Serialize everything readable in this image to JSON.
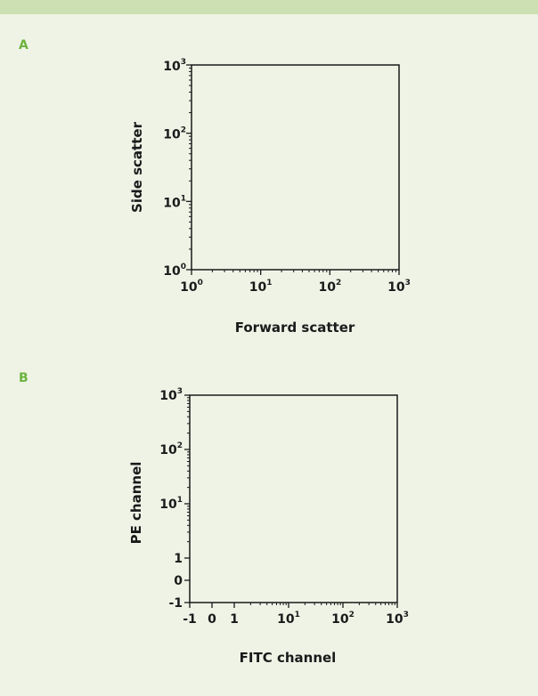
{
  "panels": [
    {
      "label": "A"
    },
    {
      "label": "B"
    }
  ],
  "colors": {
    "background": "#eef3e6",
    "bar": "#cde0b3",
    "panel_label": "#6cb33f",
    "ink": "#1a1a1a"
  },
  "chart_data": [
    {
      "type": "scatter",
      "title": "",
      "xlabel": "Forward scatter",
      "ylabel": "Side scatter",
      "xscale": "log",
      "yscale": "log",
      "xlim": [
        1,
        1000
      ],
      "ylim": [
        1,
        1000
      ],
      "x_ticks": [
        {
          "value": 1,
          "base": "10",
          "exp": "0"
        },
        {
          "value": 10,
          "base": "10",
          "exp": "1"
        },
        {
          "value": 100,
          "base": "10",
          "exp": "2"
        },
        {
          "value": 1000,
          "base": "10",
          "exp": "3"
        }
      ],
      "y_ticks": [
        {
          "value": 1,
          "base": "10",
          "exp": "0"
        },
        {
          "value": 10,
          "base": "10",
          "exp": "1"
        },
        {
          "value": 100,
          "base": "10",
          "exp": "2"
        },
        {
          "value": 1000,
          "base": "10",
          "exp": "3"
        }
      ],
      "grid": false,
      "series": []
    },
    {
      "type": "scatter",
      "title": "",
      "xlabel": "FITC channel",
      "ylabel": "PE channel",
      "xscale": "biexponential",
      "yscale": "biexponential",
      "xlim": [
        -1,
        1000
      ],
      "ylim": [
        -1,
        1000
      ],
      "x_ticks": [
        {
          "value": -1,
          "base": "-1",
          "exp": ""
        },
        {
          "value": 0,
          "base": "0",
          "exp": ""
        },
        {
          "value": 1,
          "base": "1",
          "exp": ""
        },
        {
          "value": 10,
          "base": "10",
          "exp": "1"
        },
        {
          "value": 100,
          "base": "10",
          "exp": "2"
        },
        {
          "value": 1000,
          "base": "10",
          "exp": "3"
        }
      ],
      "y_ticks": [
        {
          "value": -1,
          "base": "-1",
          "exp": ""
        },
        {
          "value": 0,
          "base": "0",
          "exp": ""
        },
        {
          "value": 1,
          "base": "1",
          "exp": ""
        },
        {
          "value": 10,
          "base": "10",
          "exp": "1"
        },
        {
          "value": 100,
          "base": "10",
          "exp": "2"
        },
        {
          "value": 1000,
          "base": "10",
          "exp": "3"
        }
      ],
      "grid": false,
      "series": []
    }
  ]
}
